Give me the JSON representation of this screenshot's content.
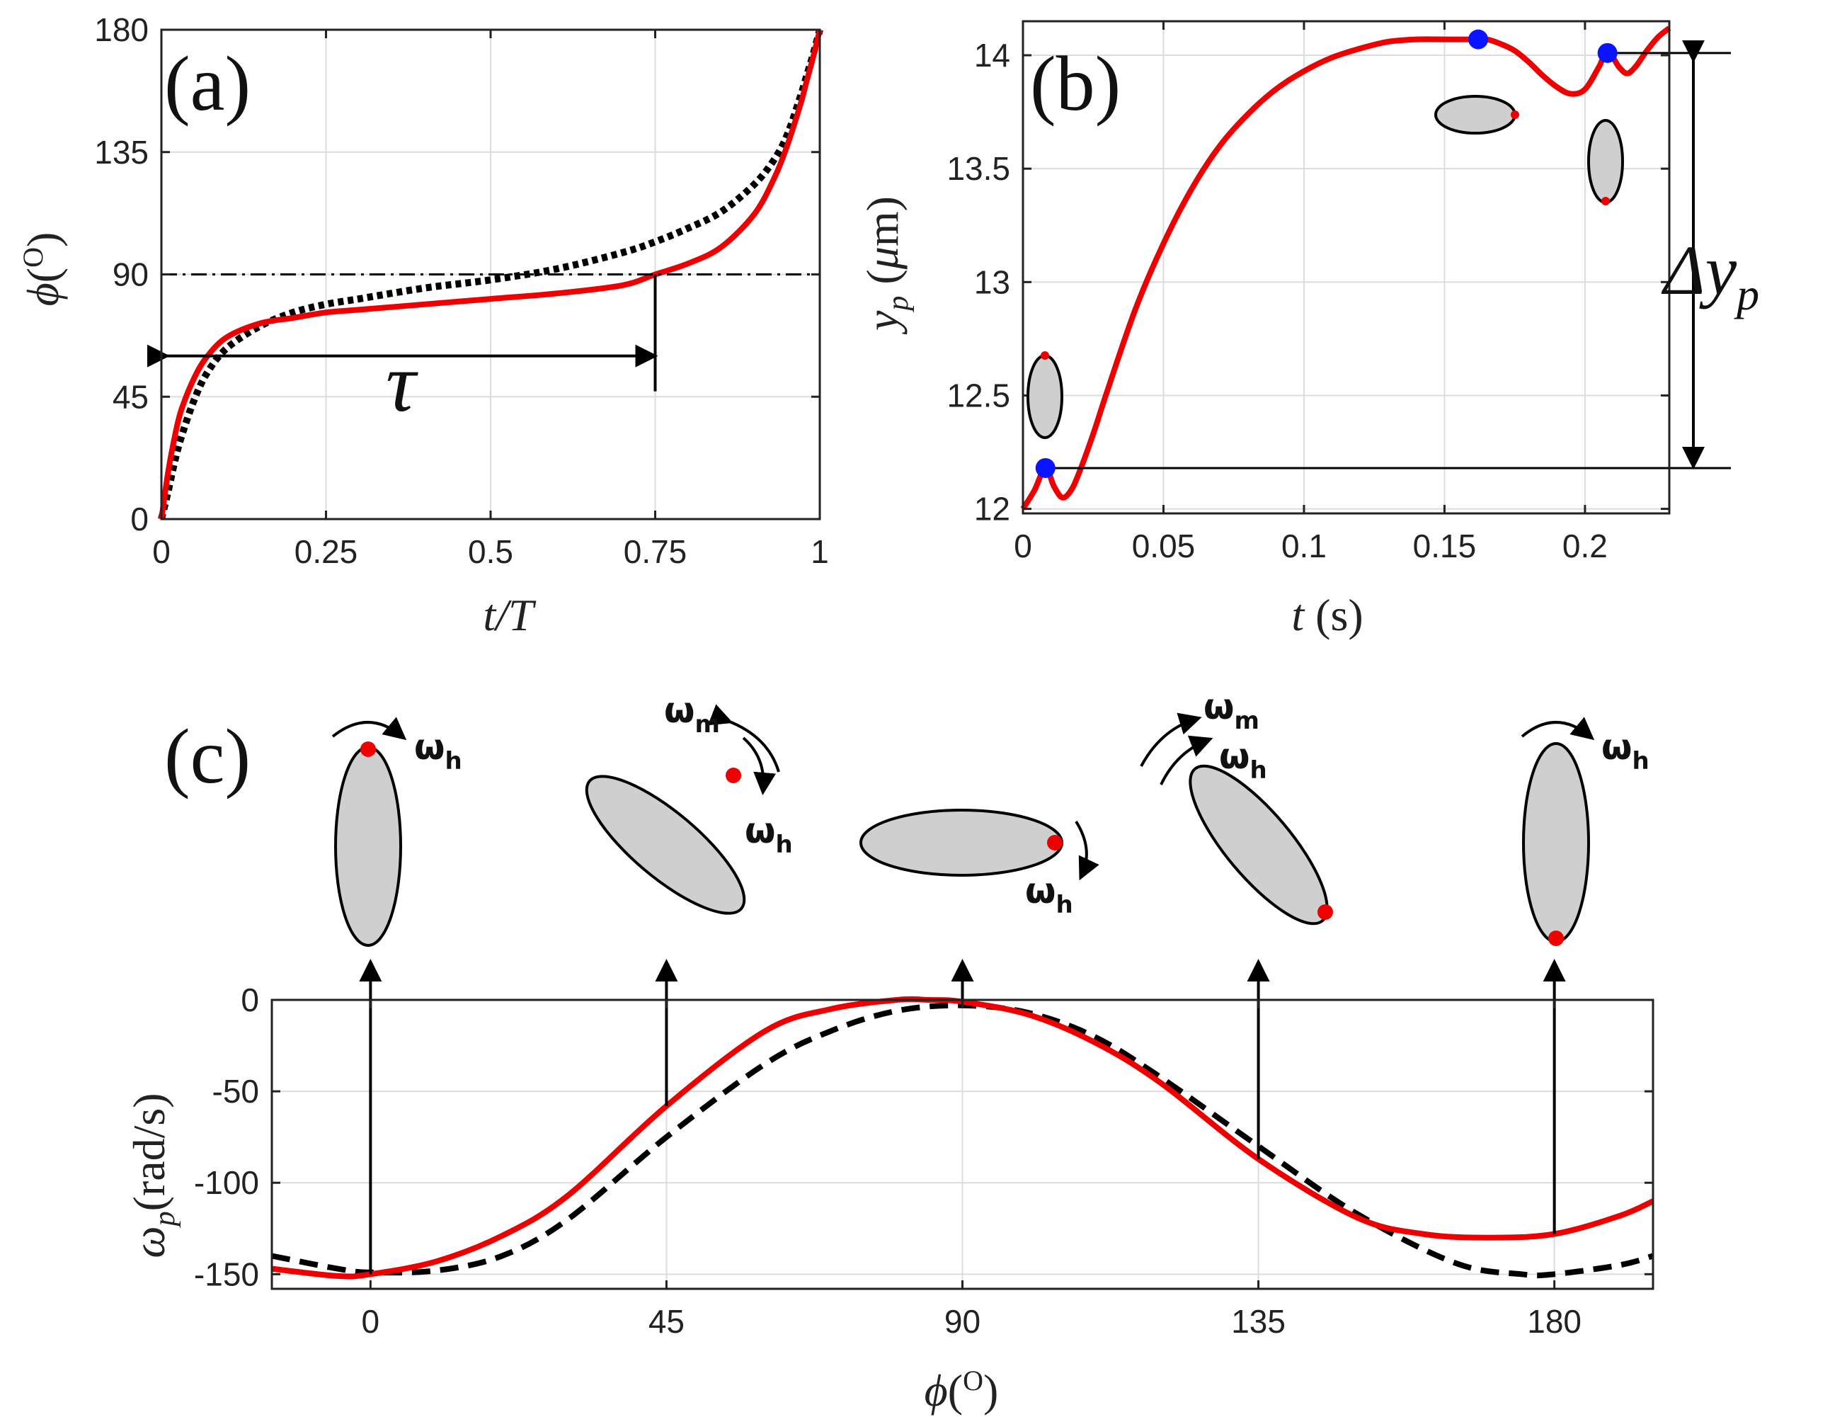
{
  "figure": {
    "panel_a_label": "(a)",
    "panel_b_label": "(b)",
    "panel_c_label": "(c)",
    "tau_label": "τ",
    "delta_yp_label": "Δy",
    "delta_yp_sub": "p",
    "omega_h": "ω",
    "omega_h_sub": "h",
    "omega_m": "ω",
    "omega_m_sub": "m",
    "colors": {
      "red": "#ee0000",
      "black": "#000000",
      "blue": "#0a14ff",
      "ellipse_fill": "#cfcfcf"
    }
  },
  "chart_data": [
    {
      "id": "a",
      "type": "line",
      "title": "(a)",
      "xlabel": "t/T",
      "ylabel": "ϕ(O)",
      "xlim": [
        0,
        1
      ],
      "ylim": [
        0,
        180
      ],
      "xticks": [
        0,
        0.25,
        0.5,
        0.75,
        1
      ],
      "xtick_labels": [
        "0",
        "0.25",
        "0.5",
        "0.75",
        "1"
      ],
      "yticks": [
        0,
        45,
        90,
        135,
        180
      ],
      "ytick_labels": [
        "0",
        "45",
        "90",
        "135",
        "180"
      ],
      "grid": true,
      "reference_line_y": 90,
      "tau_interval": [
        0,
        0.75
      ],
      "series": [
        {
          "name": "red-solid",
          "style": "solid",
          "color": "#ee0000",
          "x": [
            0,
            0.01,
            0.02,
            0.03,
            0.05,
            0.07,
            0.1,
            0.15,
            0.2,
            0.25,
            0.3,
            0.4,
            0.5,
            0.6,
            0.7,
            0.75,
            0.8,
            0.85,
            0.9,
            0.93,
            0.95,
            0.97,
            0.98,
            0.99,
            1.0
          ],
          "y": [
            0,
            17,
            30,
            40,
            52,
            60,
            67,
            72,
            74,
            76,
            77,
            79,
            81,
            83,
            86,
            90,
            94,
            100,
            112,
            125,
            137,
            152,
            161,
            170,
            180
          ]
        },
        {
          "name": "black-dotted",
          "style": "dotted",
          "color": "#000000",
          "x": [
            0,
            0.01,
            0.02,
            0.03,
            0.05,
            0.07,
            0.1,
            0.15,
            0.2,
            0.25,
            0.3,
            0.4,
            0.5,
            0.6,
            0.7,
            0.75,
            0.8,
            0.85,
            0.9,
            0.93,
            0.95,
            0.97,
            0.98,
            0.99,
            1.0
          ],
          "y": [
            0,
            10,
            21,
            30,
            44,
            54,
            63,
            71,
            76,
            79,
            81,
            85,
            88,
            92,
            98,
            102,
            107,
            113,
            123,
            132,
            141,
            155,
            163,
            171,
            180
          ]
        }
      ]
    },
    {
      "id": "b",
      "type": "line",
      "title": "(b)",
      "xlabel": "t (s)",
      "ylabel": "yp (μm)",
      "xlim": [
        0,
        0.23
      ],
      "ylim": [
        11.98,
        14.15
      ],
      "xticks": [
        0,
        0.05,
        0.1,
        0.15,
        0.2
      ],
      "xtick_labels": [
        "0",
        "0.05",
        "0.1",
        "0.15",
        "0.2"
      ],
      "yticks": [
        12,
        12.5,
        13,
        13.5,
        14
      ],
      "ytick_labels": [
        "12",
        "12.5",
        "13",
        "13.5",
        "14"
      ],
      "grid": true,
      "series": [
        {
          "name": "yp",
          "style": "solid",
          "color": "#ee0000",
          "x": [
            0,
            0.004,
            0.008,
            0.011,
            0.014,
            0.017,
            0.02,
            0.025,
            0.03,
            0.04,
            0.05,
            0.06,
            0.07,
            0.08,
            0.09,
            0.1,
            0.11,
            0.12,
            0.13,
            0.14,
            0.15,
            0.16,
            0.165,
            0.17,
            0.175,
            0.18,
            0.185,
            0.19,
            0.195,
            0.2,
            0.205,
            0.208,
            0.212,
            0.215,
            0.218,
            0.222,
            0.226,
            0.23
          ],
          "y": [
            12.0,
            12.08,
            12.18,
            12.1,
            12.05,
            12.08,
            12.16,
            12.33,
            12.52,
            12.88,
            13.17,
            13.41,
            13.6,
            13.74,
            13.85,
            13.93,
            13.99,
            14.03,
            14.06,
            14.07,
            14.07,
            14.07,
            14.07,
            14.05,
            14.02,
            13.97,
            13.91,
            13.86,
            13.83,
            13.85,
            13.95,
            14.02,
            13.95,
            13.92,
            13.95,
            14.02,
            14.08,
            14.12
          ]
        }
      ],
      "markers": [
        {
          "x": 0.008,
          "y": 12.18,
          "color": "#0a14ff"
        },
        {
          "x": 0.162,
          "y": 14.07,
          "color": "#0a14ff"
        },
        {
          "x": 0.208,
          "y": 14.01,
          "color": "#0a14ff"
        }
      ],
      "delta_range": [
        12.18,
        14.01
      ]
    },
    {
      "id": "c",
      "type": "line",
      "title": "(c)",
      "xlabel": "ϕ(O)",
      "ylabel": "ωp(rad/s)",
      "xlim": [
        -15,
        195
      ],
      "ylim": [
        -158,
        0
      ],
      "xticks": [
        0,
        45,
        90,
        135,
        180
      ],
      "xtick_labels": [
        "0",
        "45",
        "90",
        "135",
        "180"
      ],
      "yticks": [
        -150,
        -100,
        -50,
        0
      ],
      "ytick_labels": [
        "-150",
        "-100",
        "-50",
        "0"
      ],
      "grid": true,
      "series": [
        {
          "name": "red-solid",
          "style": "solid",
          "color": "#ee0000",
          "x": [
            -15,
            -5,
            0,
            10,
            20,
            30,
            45,
            60,
            70,
            80,
            85,
            90,
            100,
            110,
            120,
            135,
            150,
            160,
            170,
            180,
            190,
            195
          ],
          "y": [
            -147,
            -151,
            -150,
            -143,
            -129,
            -107,
            -58,
            -17,
            -5,
            0,
            0,
            -1,
            -8,
            -23,
            -45,
            -87,
            -119,
            -128,
            -130,
            -128,
            -118,
            -110
          ]
        },
        {
          "name": "black-dashed",
          "style": "dashed",
          "color": "#000000",
          "x": [
            -15,
            -5,
            0,
            10,
            20,
            30,
            45,
            60,
            70,
            80,
            90,
            100,
            110,
            120,
            135,
            150,
            165,
            175,
            180,
            190,
            195
          ],
          "y": [
            -140,
            -147,
            -149,
            -148,
            -140,
            -120,
            -75,
            -35,
            -17,
            -6,
            -3,
            -7,
            -20,
            -42,
            -80,
            -117,
            -144,
            -150,
            -150,
            -145,
            -140
          ]
        }
      ],
      "arrows_at_phi": [
        0,
        45,
        90,
        135,
        180
      ]
    }
  ]
}
